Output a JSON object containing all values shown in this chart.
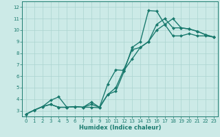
{
  "title": "",
  "xlabel": "Humidex (Indice chaleur)",
  "ylabel": "",
  "bg_color": "#cceae7",
  "grid_color": "#aad4d0",
  "line_color": "#1a7a6e",
  "marker": "D",
  "markersize": 2,
  "linewidth": 1.0,
  "xlim": [
    -0.5,
    23.5
  ],
  "ylim": [
    2.5,
    12.5
  ],
  "xticks": [
    0,
    1,
    2,
    3,
    4,
    5,
    6,
    7,
    8,
    9,
    10,
    11,
    12,
    13,
    14,
    15,
    16,
    17,
    18,
    19,
    20,
    21,
    22,
    23
  ],
  "yticks": [
    3,
    4,
    5,
    6,
    7,
    8,
    9,
    10,
    11,
    12
  ],
  "line1_x": [
    0,
    1,
    2,
    3,
    4,
    5,
    6,
    7,
    8,
    9,
    10,
    11,
    12,
    13,
    14,
    15,
    16,
    17,
    18,
    19,
    20,
    21,
    22,
    23
  ],
  "line1_y": [
    2.7,
    3.05,
    3.35,
    3.9,
    4.2,
    3.3,
    3.35,
    3.3,
    3.3,
    3.25,
    4.4,
    4.7,
    6.4,
    8.5,
    9.0,
    11.7,
    11.65,
    10.5,
    11.0,
    10.2,
    10.1,
    9.9,
    9.6,
    9.4
  ],
  "line2_x": [
    0,
    1,
    2,
    3,
    4,
    5,
    6,
    7,
    8,
    9,
    10,
    11,
    12,
    13,
    14,
    15,
    16,
    17,
    18,
    19,
    20,
    21,
    22,
    23
  ],
  "line2_y": [
    2.7,
    3.05,
    3.35,
    3.55,
    3.3,
    3.3,
    3.35,
    3.3,
    3.55,
    3.3,
    4.4,
    5.0,
    6.6,
    8.3,
    8.5,
    9.0,
    10.5,
    11.0,
    10.2,
    10.2,
    10.1,
    9.9,
    9.6,
    9.4
  ],
  "line3_x": [
    0,
    1,
    2,
    3,
    4,
    5,
    6,
    7,
    8,
    9,
    10,
    11,
    12,
    13,
    14,
    15,
    16,
    17,
    18,
    19,
    20,
    21,
    22,
    23
  ],
  "line3_y": [
    2.7,
    3.05,
    3.35,
    3.55,
    3.3,
    3.3,
    3.35,
    3.3,
    3.75,
    3.3,
    5.3,
    6.55,
    6.5,
    7.5,
    8.5,
    9.0,
    10.0,
    10.5,
    9.5,
    9.5,
    9.7,
    9.5,
    9.5,
    9.4
  ],
  "xlabel_fontsize": 6,
  "tick_fontsize": 5
}
